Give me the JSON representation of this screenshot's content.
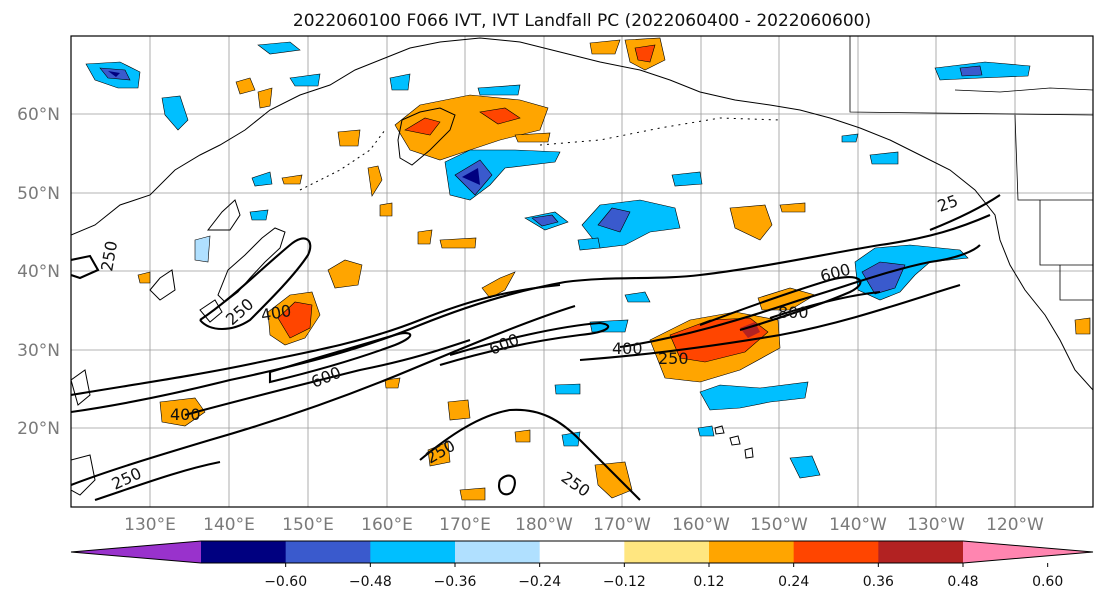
{
  "title": "2022060100 F066 IVT, IVT Landfall PC (2022060400 - 2022060600)",
  "lat_labels": [
    "60°N",
    "50°N",
    "40°N",
    "30°N",
    "20°N"
  ],
  "lon_labels": [
    "130°E",
    "140°E",
    "150°E",
    "160°E",
    "170°E",
    "180°W",
    "170°W",
    "160°W",
    "150°W",
    "140°W",
    "130°W",
    "120°W"
  ],
  "colorbar": {
    "tick_labels": [
      "−0.60",
      "−0.48",
      "−0.36",
      "−0.24",
      "−0.12",
      "0.12",
      "0.24",
      "0.36",
      "0.48",
      "0.60"
    ],
    "colors": [
      "#9932cc",
      "#000080",
      "#3a5acd",
      "#00bfff",
      "#b0e0ff",
      "#ffffff",
      "#ffe680",
      "#ffa500",
      "#ff4500",
      "#b22222",
      "#ff85b0"
    ]
  },
  "ivt_contour_labels": {
    "w250": "250",
    "w250b": "250",
    "w400": "400",
    "w400b": "400",
    "w600": "600",
    "m600": "600",
    "m400": "400",
    "m250": "250",
    "s250": "250",
    "s250b": "250",
    "e600": "600",
    "e800": "800",
    "ne25": "25"
  }
}
